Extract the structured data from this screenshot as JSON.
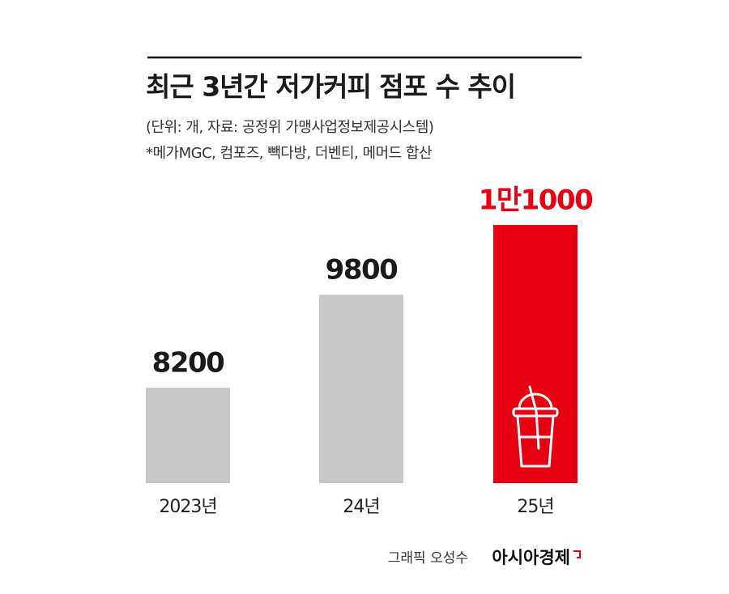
{
  "chart_data": {
    "type": "bar",
    "title": "최근 3년간 저가커피 점포 수 추이",
    "subtitle": "(단위: 개, 자료: 공정위 가맹사업정보제공시스템)",
    "note": "*메가MGC, 컴포즈, 빽다방, 더벤티, 메머드 합산",
    "categories": [
      "2023년",
      "24년",
      "25년"
    ],
    "values": [
      8200,
      9800,
      11000
    ],
    "value_labels": [
      "8200",
      "9800",
      "1만1000"
    ],
    "colors": [
      "#c8c8c8",
      "#c8c8c8",
      "#e60012"
    ],
    "label_colors": [
      "#1a1a1a",
      "#1a1a1a",
      "#e60012"
    ],
    "ylim": [
      6560,
      11000
    ],
    "credit": "그래픽 오성수",
    "source_brand": "아시아경제"
  }
}
